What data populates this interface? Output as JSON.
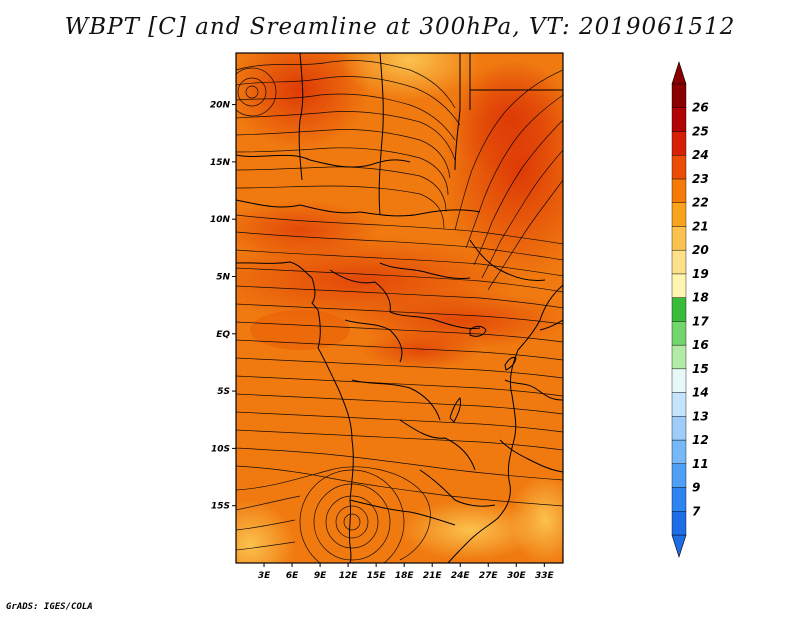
{
  "title": "WBPT [C] and Sreamline at 300hPa, VT: 2019061512",
  "footer": "GrADS: IGES/COLA",
  "map": {
    "lon_labels": [
      "3E",
      "6E",
      "9E",
      "12E",
      "15E",
      "18E",
      "21E",
      "24E",
      "27E",
      "30E",
      "33E"
    ],
    "lat_labels": [
      "20N",
      "15N",
      "10N",
      "5N",
      "EQ",
      "5S",
      "10S",
      "15S"
    ],
    "lon_range": [
      0,
      35
    ],
    "lat_range": [
      -20,
      24.5
    ],
    "field": "WBPT [C]",
    "level": "300hPa",
    "valid_time": "2019061512",
    "typical_values": "22-24"
  },
  "colorbar": {
    "labels": [
      "7",
      "9",
      "11",
      "12",
      "13",
      "14",
      "15",
      "16",
      "17",
      "18",
      "19",
      "20",
      "21",
      "22",
      "23",
      "24",
      "25",
      "26"
    ],
    "colors": [
      "#1e6ce6",
      "#2e84f0",
      "#4fa0f5",
      "#76b8f8",
      "#9ecdfb",
      "#c4e3fd",
      "#e8f8f8",
      "#b2eba8",
      "#72d66c",
      "#3bbb3b",
      "#fff4b0",
      "#fde08a",
      "#fbc24e",
      "#f9a31c",
      "#f47a0a",
      "#ec4d06",
      "#d61f04",
      "#b00404",
      "#8a0000"
    ]
  }
}
